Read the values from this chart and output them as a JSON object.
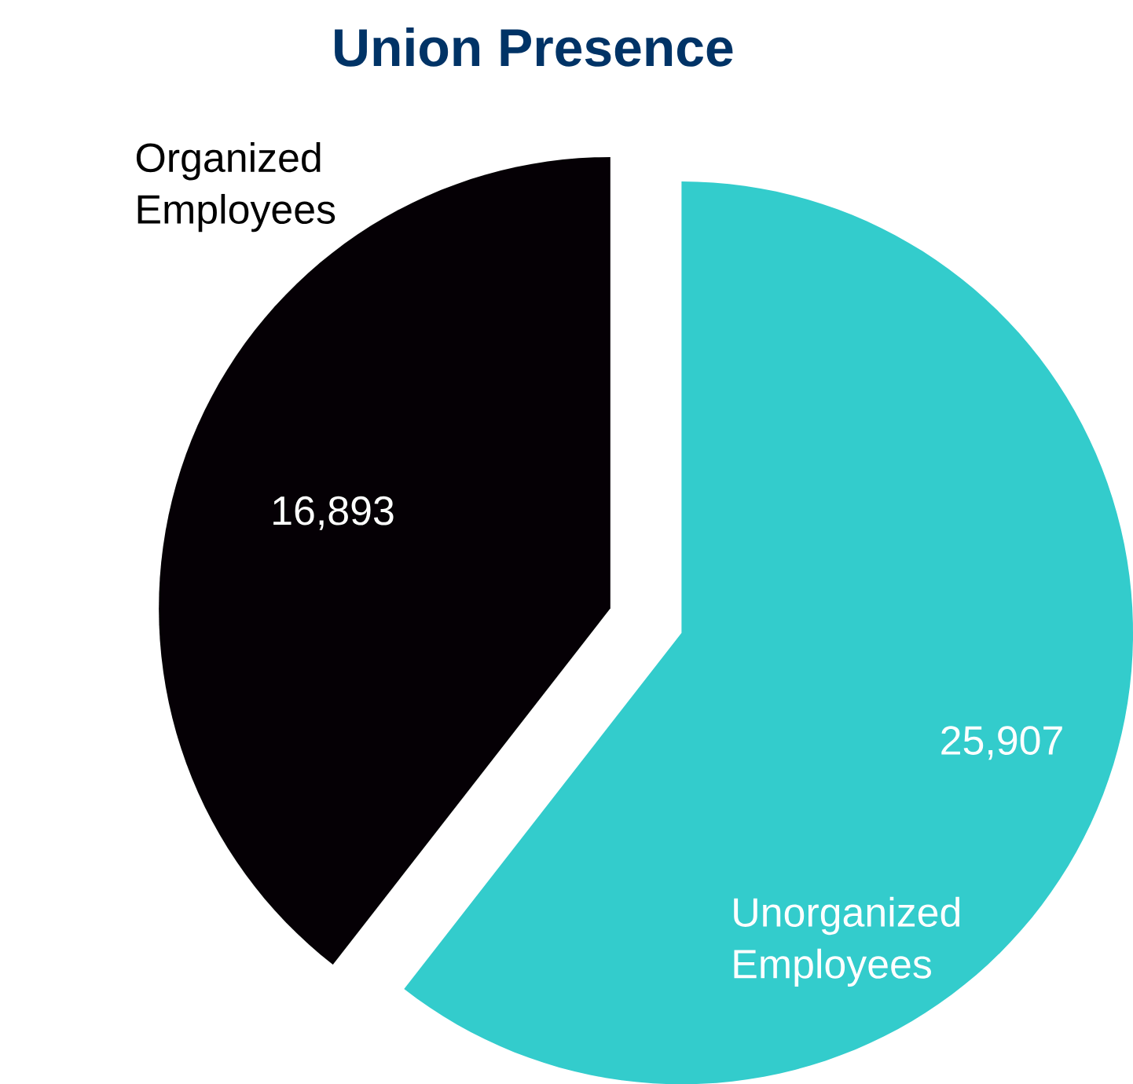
{
  "chart_data": {
    "type": "pie",
    "title": "Union Presence",
    "categories": [
      "Organized Employees",
      "Unorganized Employees"
    ],
    "values": [
      16893,
      25907
    ],
    "value_labels": [
      "16,893",
      "25,907"
    ],
    "colors": [
      "#050005",
      "#33cccc"
    ]
  }
}
